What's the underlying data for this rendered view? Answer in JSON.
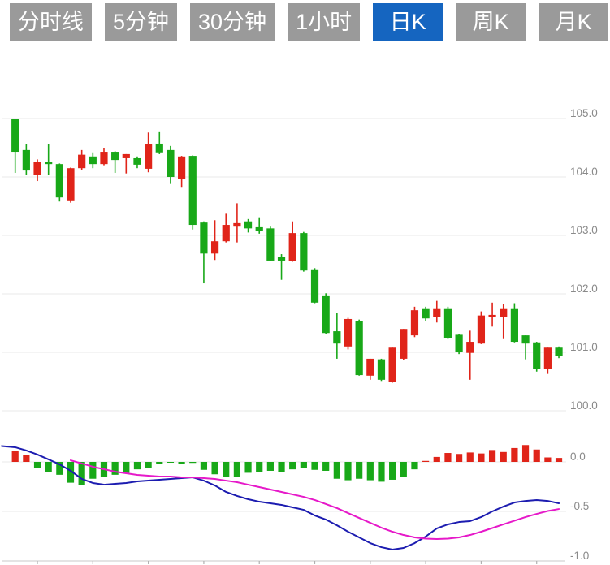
{
  "toolbar": {
    "buttons": [
      {
        "label": "分时线",
        "active": false
      },
      {
        "label": "5分钟",
        "active": false
      },
      {
        "label": "30分钟",
        "active": false
      },
      {
        "label": "1小时",
        "active": false
      },
      {
        "label": "日K",
        "active": true
      },
      {
        "label": "周K",
        "active": false
      },
      {
        "label": "月K",
        "active": false
      }
    ]
  },
  "chart_data": {
    "type": "candlestick+macd",
    "title": "",
    "legend": "none",
    "grid": "horizontal-only",
    "price_axis": {
      "position": "right",
      "ticks": [
        "105.0",
        "104.0",
        "103.0",
        "102.0",
        "101.0",
        "100.0"
      ],
      "tick_values": [
        105.0,
        104.0,
        103.0,
        102.0,
        101.0,
        100.0
      ],
      "range": [
        99.9,
        105.1
      ]
    },
    "macd_axis": {
      "position": "right",
      "ticks": [
        "0.0",
        "-0.5",
        "-1.0"
      ],
      "tick_values": [
        0.0,
        -0.5,
        -1.0
      ],
      "range": [
        -1.0,
        0.25
      ]
    },
    "x_axis": {
      "labels": [],
      "tick_every_n_candles": 5
    },
    "candle_format": [
      "open",
      "high",
      "low",
      "close",
      "color(r=up,g=down)"
    ],
    "candles": [
      [
        104.99,
        104.99,
        104.07,
        104.43,
        "g"
      ],
      [
        104.46,
        104.56,
        104.04,
        104.11,
        "g"
      ],
      [
        104.04,
        104.3,
        103.93,
        104.25,
        "r"
      ],
      [
        104.26,
        104.56,
        104.04,
        104.22,
        "g"
      ],
      [
        104.22,
        104.23,
        103.58,
        103.65,
        "g"
      ],
      [
        103.6,
        104.16,
        103.56,
        104.15,
        "r"
      ],
      [
        104.15,
        104.46,
        104.12,
        104.38,
        "r"
      ],
      [
        104.35,
        104.42,
        104.15,
        104.22,
        "g"
      ],
      [
        104.22,
        104.5,
        104.2,
        104.43,
        "r"
      ],
      [
        104.43,
        104.44,
        104.07,
        104.29,
        "g"
      ],
      [
        104.32,
        104.39,
        104.06,
        104.39,
        "r"
      ],
      [
        104.32,
        104.35,
        104.15,
        104.21,
        "g"
      ],
      [
        104.14,
        104.76,
        104.08,
        104.56,
        "r"
      ],
      [
        104.57,
        104.78,
        104.39,
        104.42,
        "g"
      ],
      [
        104.46,
        104.53,
        103.88,
        104.0,
        "g"
      ],
      [
        103.97,
        104.36,
        103.83,
        104.35,
        "r"
      ],
      [
        104.36,
        104.37,
        103.1,
        103.18,
        "g"
      ],
      [
        103.22,
        103.24,
        102.18,
        102.69,
        "g"
      ],
      [
        102.69,
        103.26,
        102.58,
        102.9,
        "r"
      ],
      [
        102.9,
        103.37,
        102.88,
        103.18,
        "r"
      ],
      [
        103.15,
        103.55,
        102.88,
        103.21,
        "r"
      ],
      [
        103.24,
        103.28,
        103.05,
        103.12,
        "g"
      ],
      [
        103.14,
        103.31,
        103.03,
        103.07,
        "g"
      ],
      [
        103.12,
        103.15,
        102.56,
        102.57,
        "g"
      ],
      [
        102.63,
        102.68,
        102.24,
        102.57,
        "g"
      ],
      [
        102.56,
        103.24,
        102.55,
        103.04,
        "r"
      ],
      [
        103.04,
        103.06,
        102.38,
        102.4,
        "g"
      ],
      [
        102.42,
        102.44,
        101.84,
        101.85,
        "g"
      ],
      [
        101.96,
        102.01,
        101.32,
        101.33,
        "g"
      ],
      [
        101.36,
        101.68,
        100.89,
        101.15,
        "g"
      ],
      [
        101.1,
        101.59,
        101.05,
        101.57,
        "r"
      ],
      [
        101.54,
        101.56,
        100.6,
        100.61,
        "g"
      ],
      [
        100.6,
        100.89,
        100.53,
        100.89,
        "r"
      ],
      [
        100.88,
        100.89,
        100.51,
        100.53,
        "g"
      ],
      [
        100.5,
        101.08,
        100.48,
        101.08,
        "r"
      ],
      [
        100.89,
        101.4,
        100.87,
        101.4,
        "r"
      ],
      [
        101.29,
        101.78,
        101.26,
        101.72,
        "r"
      ],
      [
        101.74,
        101.78,
        101.53,
        101.58,
        "g"
      ],
      [
        101.6,
        101.88,
        101.51,
        101.74,
        "r"
      ],
      [
        101.74,
        101.78,
        101.24,
        101.25,
        "g"
      ],
      [
        101.3,
        101.31,
        100.97,
        101.01,
        "g"
      ],
      [
        100.99,
        101.37,
        100.53,
        101.18,
        "r"
      ],
      [
        101.15,
        101.7,
        101.14,
        101.63,
        "r"
      ],
      [
        101.61,
        101.85,
        101.44,
        101.64,
        "r"
      ],
      [
        101.6,
        101.82,
        101.24,
        101.74,
        "r"
      ],
      [
        101.74,
        101.84,
        101.17,
        101.18,
        "g"
      ],
      [
        101.29,
        101.29,
        100.88,
        101.15,
        "g"
      ],
      [
        101.17,
        101.18,
        100.67,
        100.71,
        "g"
      ],
      [
        100.71,
        101.08,
        100.63,
        101.08,
        "r"
      ],
      [
        101.08,
        101.1,
        100.9,
        100.94,
        "g"
      ]
    ],
    "macd": {
      "hist": [
        0.11,
        0.07,
        -0.06,
        -0.1,
        -0.13,
        -0.21,
        -0.23,
        -0.17,
        -0.155,
        -0.13,
        -0.11,
        -0.075,
        -0.06,
        -0.02,
        -0.005,
        -0.02,
        -0.01,
        -0.08,
        -0.125,
        -0.15,
        -0.15,
        -0.11,
        -0.1,
        -0.09,
        -0.105,
        -0.075,
        -0.065,
        -0.08,
        -0.09,
        -0.17,
        -0.185,
        -0.17,
        -0.185,
        -0.2,
        -0.18,
        -0.155,
        -0.075,
        0.01,
        0.05,
        0.09,
        0.08,
        0.095,
        0.085,
        0.12,
        0.1,
        0.14,
        0.17,
        0.125,
        0.045,
        0.04
      ],
      "dif": [
        0.148,
        0.115,
        0.074,
        0.025,
        -0.025,
        -0.09,
        -0.172,
        -0.213,
        -0.23,
        -0.221,
        -0.213,
        -0.197,
        -0.189,
        -0.18,
        -0.172,
        -0.164,
        -0.156,
        -0.189,
        -0.238,
        -0.303,
        -0.344,
        -0.377,
        -0.402,
        -0.418,
        -0.434,
        -0.459,
        -0.484,
        -0.541,
        -0.582,
        -0.64,
        -0.705,
        -0.762,
        -0.82,
        -0.861,
        -0.885,
        -0.869,
        -0.82,
        -0.754,
        -0.672,
        -0.631,
        -0.607,
        -0.598,
        -0.557,
        -0.5,
        -0.451,
        -0.41,
        -0.394,
        -0.385,
        -0.394,
        -0.418
      ],
      "dea": [
        null,
        null,
        null,
        null,
        null,
        0.016,
        -0.016,
        -0.049,
        -0.074,
        -0.098,
        -0.115,
        -0.131,
        -0.139,
        -0.148,
        -0.148,
        -0.156,
        -0.156,
        -0.164,
        -0.172,
        -0.189,
        -0.205,
        -0.23,
        -0.254,
        -0.279,
        -0.303,
        -0.328,
        -0.353,
        -0.385,
        -0.426,
        -0.467,
        -0.517,
        -0.566,
        -0.615,
        -0.664,
        -0.705,
        -0.738,
        -0.762,
        -0.775,
        -0.779,
        -0.775,
        -0.762,
        -0.738,
        -0.705,
        -0.668,
        -0.631,
        -0.594,
        -0.557,
        -0.525,
        -0.496,
        -0.476
      ]
    },
    "colors": {
      "up": "#e02419",
      "down": "#18a818",
      "dif_line": "#1c1cb0",
      "dea_line": "#e619c9",
      "grid": "#e8e8e8",
      "axis_line": "#c8c8c8",
      "axis_text": "#8a8a8a",
      "button_bg": "#9a9a9a",
      "button_active_bg": "#1565c0",
      "button_text": "#ffffff"
    }
  }
}
